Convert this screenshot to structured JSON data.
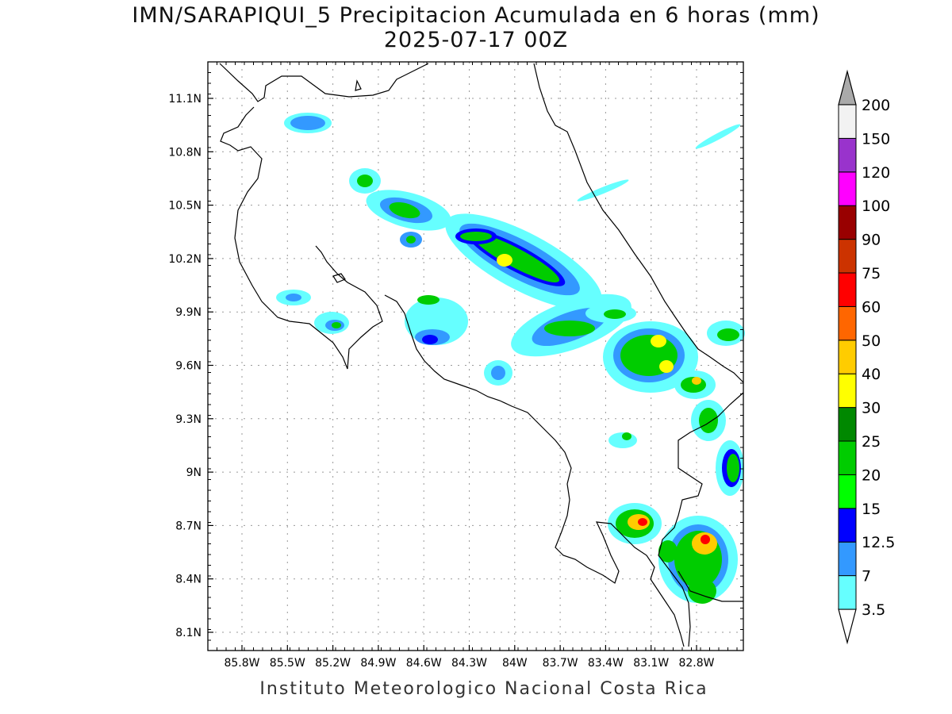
{
  "title": {
    "line1": "IMN/SARAPIQUI_5 Precipitacion Acumulada en 6 horas (mm)",
    "line2": "2025-07-17 00Z"
  },
  "footer": "Instituto Meteorologico Nacional Costa Rica",
  "map": {
    "lat_labels": [
      "11.1N",
      "10.8N",
      "10.5N",
      "10.2N",
      "9.9N",
      "9.6N",
      "9.3N",
      "9N",
      "8.7N",
      "8.4N",
      "8.1N"
    ],
    "lon_labels": [
      "85.8W",
      "85.5W",
      "85.2W",
      "84.9W",
      "84.6W",
      "84.3W",
      "84W",
      "83.7W",
      "83.4W",
      "83.1W",
      "82.8W"
    ]
  },
  "legend": {
    "levels": [
      "3.5",
      "7",
      "12.5",
      "15",
      "20",
      "25",
      "30",
      "40",
      "50",
      "60",
      "75",
      "90",
      "100",
      "120",
      "150",
      "200"
    ],
    "colors": [
      "#66ffff",
      "#3399ff",
      "#0000ff",
      "#00ff00",
      "#00cc00",
      "#008800",
      "#ffff00",
      "#ffcc00",
      "#ff6600",
      "#ff0000",
      "#cc3300",
      "#990000",
      "#ff00ff",
      "#9933cc",
      "#f2f2f2",
      "#aaaaaa"
    ]
  }
}
